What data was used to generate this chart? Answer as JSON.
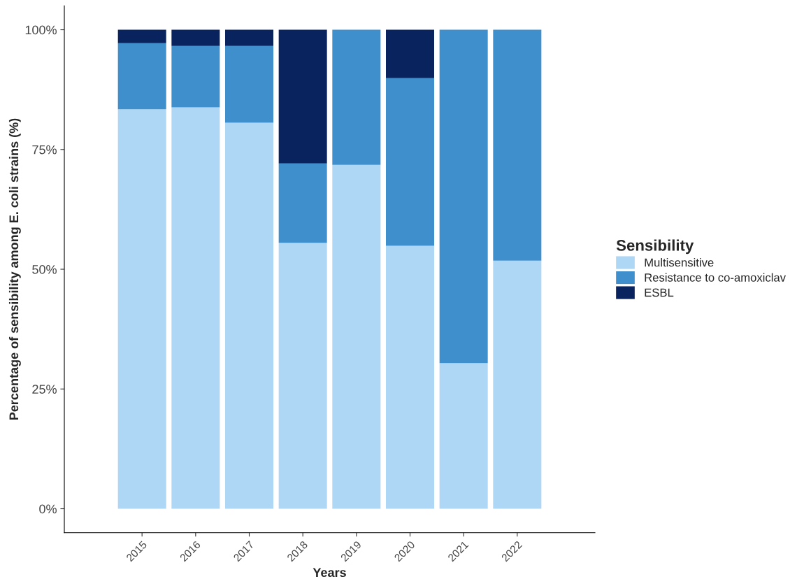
{
  "chart_data": {
    "type": "bar",
    "stacked": true,
    "xlabel": "Years",
    "ylabel": "Percentage of sensibility among E. coli strains (%)",
    "legend_title": "Sensibility",
    "legend": "right",
    "grid": false,
    "categories": [
      "2015",
      "2016",
      "2017",
      "2018",
      "2019",
      "2020",
      "2021",
      "2022"
    ],
    "ylim": [
      -5,
      105
    ],
    "yticks": [
      {
        "value": 0,
        "label": "0%"
      },
      {
        "value": 25,
        "label": "25%"
      },
      {
        "value": 50,
        "label": "50%"
      },
      {
        "value": 75,
        "label": "75%"
      },
      {
        "value": 100,
        "label": "100%"
      }
    ],
    "series": [
      {
        "name": "Multisensitive",
        "color": "#aed6f5",
        "values": [
          83.4,
          83.8,
          80.6,
          55.5,
          71.8,
          54.9,
          30.4,
          51.8
        ]
      },
      {
        "name": "Resistance to co-amoxiclav",
        "color": "#3e8fcc",
        "values": [
          13.8,
          12.8,
          16.0,
          16.6,
          28.2,
          35.0,
          69.6,
          48.2
        ]
      },
      {
        "name": "ESBL",
        "color": "#08235e",
        "values": [
          2.8,
          3.4,
          3.4,
          27.9,
          null,
          10.1,
          null,
          null
        ]
      }
    ]
  }
}
